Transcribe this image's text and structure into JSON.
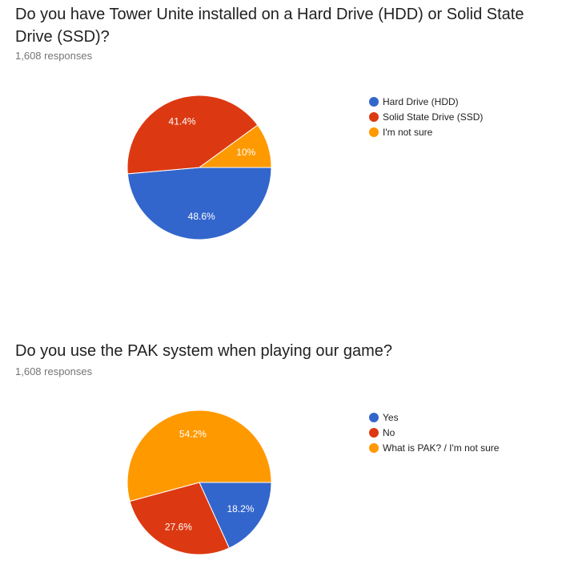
{
  "questions": [
    {
      "title": "Do you have Tower Unite installed on a Hard Drive (HDD) or Solid State Drive (SSD)?",
      "responses": "1,608 responses",
      "chart_data": {
        "type": "pie",
        "categories": [
          "Hard Drive (HDD)",
          "Solid State Drive (SSD)",
          "I'm not sure"
        ],
        "values": [
          48.6,
          41.4,
          10
        ],
        "labels": [
          "48.6%",
          "41.4%",
          "10%"
        ],
        "colors": [
          "#3366cc",
          "#dc3912",
          "#ff9900"
        ],
        "legend": "right"
      }
    },
    {
      "title": "Do you use the PAK system when playing our game?",
      "responses": "1,608 responses",
      "chart_data": {
        "type": "pie",
        "categories": [
          "Yes",
          "No",
          "What is PAK? / I'm not sure"
        ],
        "values": [
          18.2,
          27.6,
          54.2
        ],
        "labels": [
          "18.2%",
          "27.6%",
          "54.2%"
        ],
        "colors": [
          "#3366cc",
          "#dc3912",
          "#ff9900"
        ],
        "legend": "right"
      }
    }
  ]
}
